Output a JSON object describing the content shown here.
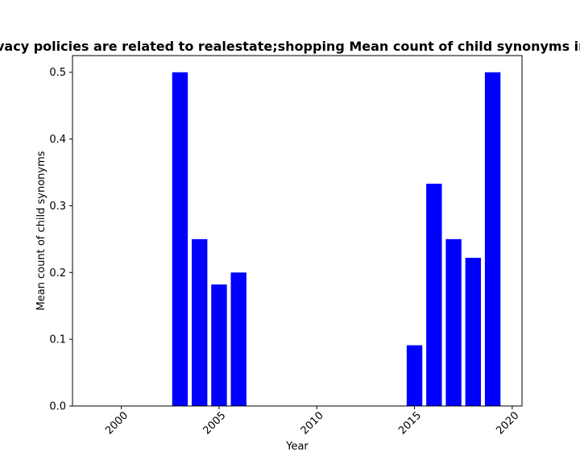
{
  "chart_data": {
    "type": "bar",
    "title": "Proportion of privacy policies are related to realestate;shopping Mean count of child synonyms in privacy policies",
    "xlabel": "Year",
    "ylabel": "Mean count of child synonyms",
    "xlim": [
      1997.5,
      2020.5
    ],
    "ylim": [
      0.0,
      0.525
    ],
    "x_ticks": [
      "2000",
      "2005",
      "2010",
      "2015",
      "2020"
    ],
    "y_ticks": [
      "0.0",
      "0.1",
      "0.2",
      "0.3",
      "0.4",
      "0.5"
    ],
    "bar_color": "#0000ff",
    "grid": false,
    "x": [
      2003,
      2004,
      2005,
      2006,
      2015,
      2016,
      2017,
      2018,
      2019
    ],
    "values": [
      0.5,
      0.25,
      0.182,
      0.2,
      0.091,
      0.333,
      0.25,
      0.222,
      0.5
    ]
  }
}
